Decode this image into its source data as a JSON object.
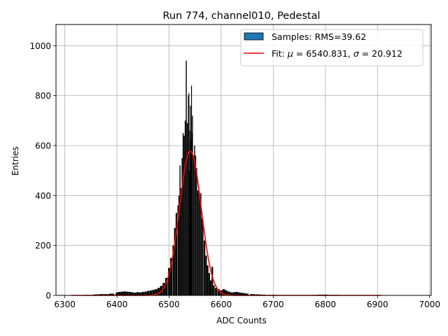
{
  "chart_data": {
    "type": "histogram",
    "title": "Run 774, channel010, Pedestal",
    "xlabel": "ADC Counts",
    "ylabel": "Entries",
    "xlim": [
      6283,
      7003
    ],
    "ylim": [
      0,
      1085
    ],
    "xticks": [
      6300,
      6400,
      6500,
      6600,
      6700,
      6800,
      6900,
      7000
    ],
    "yticks": [
      0,
      200,
      400,
      600,
      800,
      1000
    ],
    "grid": true,
    "legend_position": "top-right",
    "legend": [
      {
        "kind": "patch",
        "label": "Samples: RMS=39.62",
        "color": "#1f77b4"
      },
      {
        "kind": "line",
        "label_prefix": "Fit: ",
        "mu_symbol": "μ",
        "mu_text": " = 6540.831, ",
        "sigma_symbol": "σ",
        "sigma_text": " = 20.912",
        "color": "#ff0000"
      }
    ],
    "histogram": {
      "bar_color": "#000000",
      "bins": [
        [
          6310,
          1
        ],
        [
          6320,
          1
        ],
        [
          6330,
          1
        ],
        [
          6340,
          2
        ],
        [
          6350,
          2
        ],
        [
          6360,
          4
        ],
        [
          6370,
          5
        ],
        [
          6380,
          5
        ],
        [
          6390,
          7
        ],
        [
          6400,
          12
        ],
        [
          6405,
          14
        ],
        [
          6410,
          15
        ],
        [
          6415,
          16
        ],
        [
          6420,
          15
        ],
        [
          6425,
          14
        ],
        [
          6430,
          12
        ],
        [
          6435,
          11
        ],
        [
          6440,
          13
        ],
        [
          6445,
          12
        ],
        [
          6450,
          14
        ],
        [
          6455,
          15
        ],
        [
          6460,
          18
        ],
        [
          6465,
          20
        ],
        [
          6470,
          22
        ],
        [
          6475,
          25
        ],
        [
          6480,
          30
        ],
        [
          6485,
          38
        ],
        [
          6490,
          50
        ],
        [
          6495,
          70
        ],
        [
          6500,
          110
        ],
        [
          6504,
          150
        ],
        [
          6508,
          200
        ],
        [
          6511,
          270
        ],
        [
          6514,
          330
        ],
        [
          6517,
          360
        ],
        [
          6519,
          400
        ],
        [
          6521,
          520
        ],
        [
          6523,
          430
        ],
        [
          6525,
          550
        ],
        [
          6527,
          650
        ],
        [
          6529,
          640
        ],
        [
          6531,
          700
        ],
        [
          6533,
          940
        ],
        [
          6535,
          690
        ],
        [
          6537,
          800
        ],
        [
          6538,
          810
        ],
        [
          6539,
          500
        ],
        [
          6540,
          660
        ],
        [
          6541,
          760
        ],
        [
          6542,
          620
        ],
        [
          6543,
          840
        ],
        [
          6544,
          650
        ],
        [
          6545,
          720
        ],
        [
          6547,
          560
        ],
        [
          6549,
          600
        ],
        [
          6551,
          560
        ],
        [
          6553,
          510
        ],
        [
          6555,
          420
        ],
        [
          6557,
          440
        ],
        [
          6559,
          390
        ],
        [
          6561,
          410
        ],
        [
          6563,
          310
        ],
        [
          6565,
          300
        ],
        [
          6568,
          220
        ],
        [
          6571,
          160
        ],
        [
          6574,
          120
        ],
        [
          6577,
          90
        ],
        [
          6580,
          60
        ],
        [
          6583,
          115
        ],
        [
          6586,
          40
        ],
        [
          6590,
          30
        ],
        [
          6595,
          25
        ],
        [
          6600,
          20
        ],
        [
          6605,
          25
        ],
        [
          6610,
          20
        ],
        [
          6615,
          15
        ],
        [
          6620,
          12
        ],
        [
          6625,
          13
        ],
        [
          6630,
          14
        ],
        [
          6635,
          12
        ],
        [
          6640,
          10
        ],
        [
          6645,
          9
        ],
        [
          6650,
          7
        ],
        [
          6660,
          5
        ],
        [
          6670,
          4
        ],
        [
          6680,
          3
        ],
        [
          6690,
          2
        ],
        [
          6700,
          2
        ],
        [
          6720,
          1
        ],
        [
          6740,
          1
        ],
        [
          6760,
          1
        ],
        [
          6780,
          2
        ],
        [
          6790,
          3
        ],
        [
          6800,
          3
        ],
        [
          6810,
          2
        ],
        [
          6820,
          2
        ],
        [
          6830,
          1
        ],
        [
          6850,
          1
        ],
        [
          6880,
          1
        ]
      ]
    },
    "fit": {
      "mu": 6540.831,
      "sigma": 20.912,
      "amplitude": 578,
      "x_range": [
        6312,
        6907
      ],
      "color": "#ff0000"
    }
  }
}
